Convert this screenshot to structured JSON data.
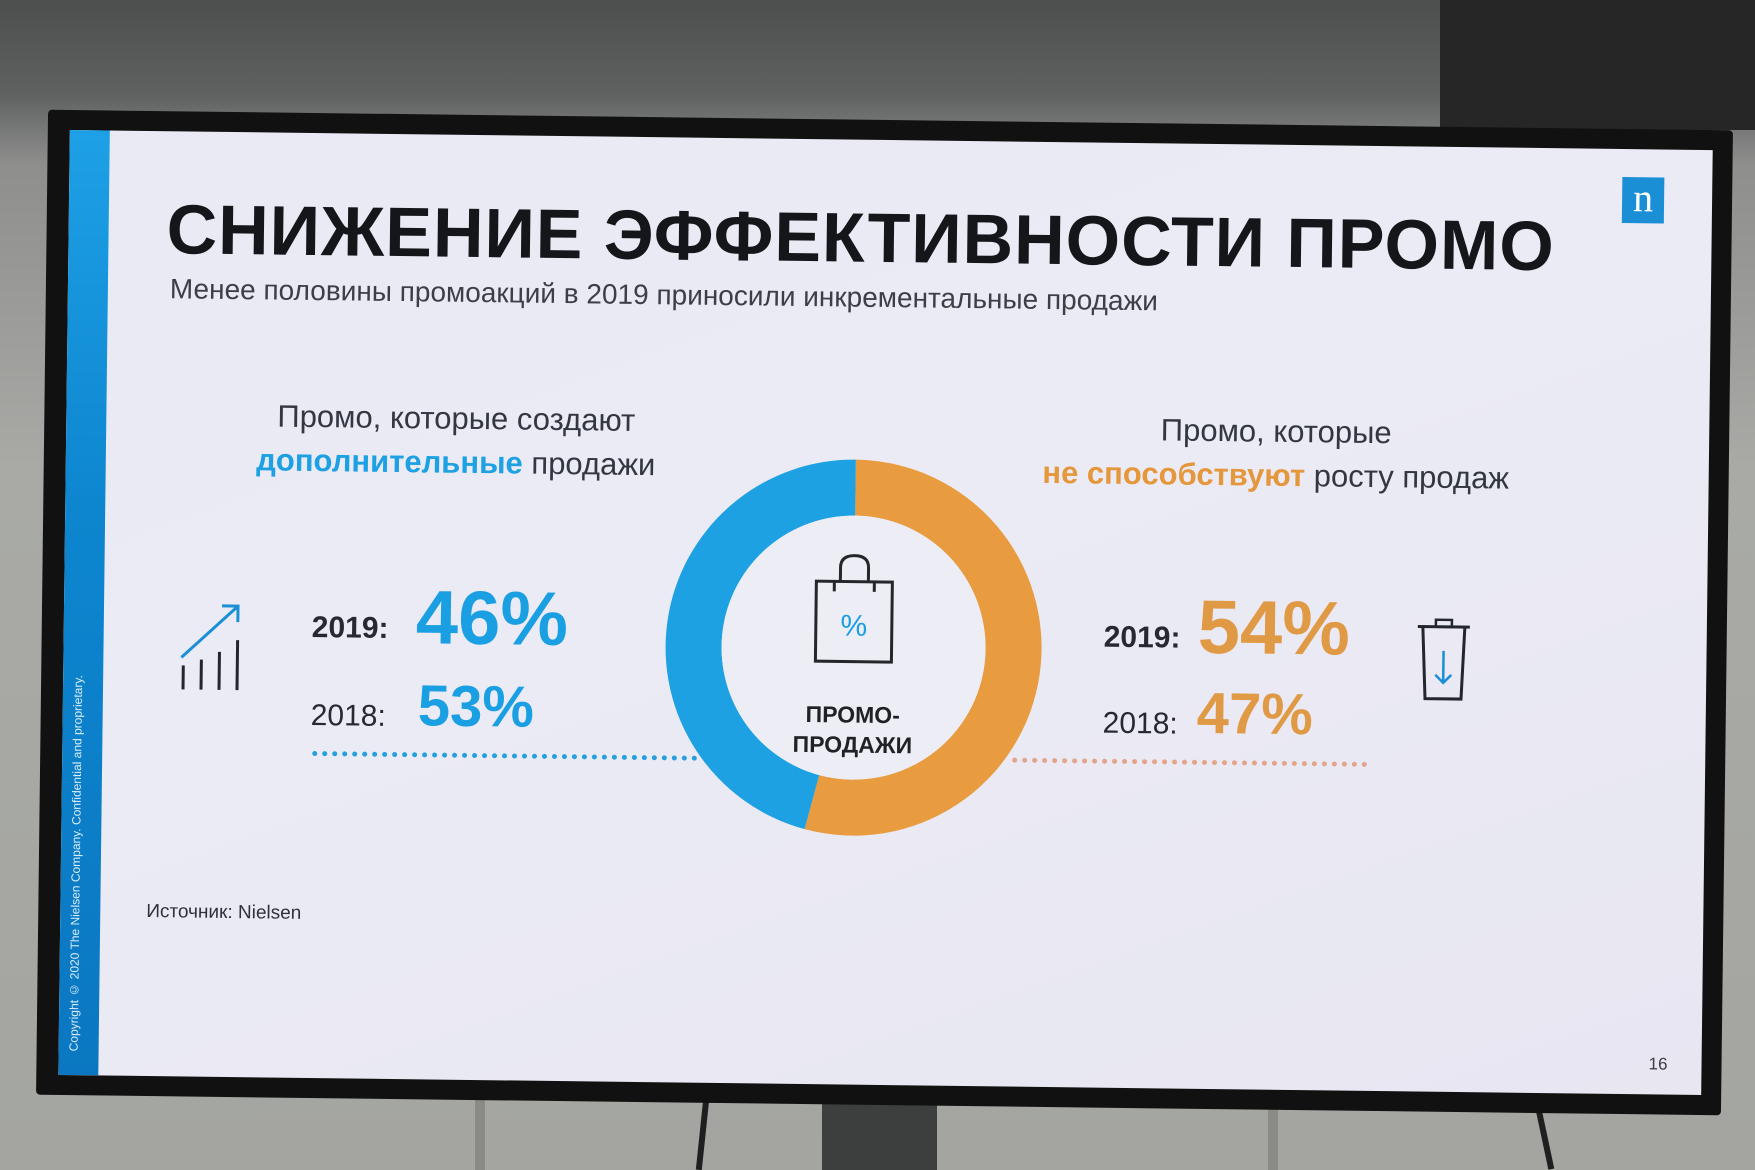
{
  "slide": {
    "logo": "n",
    "title": "СНИЖЕНИЕ ЭФФЕКТИВНОСТИ ПРОМО",
    "subtitle": "Менее половины промоакций в 2019 приносили инкрементальные продажи",
    "copyright": "Copyright © 2020 The Nielsen Company. Confidential and proprietary.",
    "source": "Источник: Nielsen",
    "page_number": "16"
  },
  "left": {
    "heading_line1": "Промо, которые создают",
    "heading_highlight": "дополнительные",
    "heading_rest": " продажи",
    "year_2019": "2019:",
    "value_2019": "46%",
    "year_2018": "2018:",
    "value_2018": "53%",
    "icon": "growth-chart-icon",
    "color": "#1ea1e3"
  },
  "right": {
    "heading_line1": "Промо, которые",
    "heading_highlight": "не способствуют",
    "heading_rest": " росту продаж",
    "year_2019": "2019:",
    "value_2019": "54%",
    "year_2018": "2018:",
    "value_2018": "47%",
    "icon": "trash-down-icon",
    "color": "#e5973c"
  },
  "center": {
    "label_line1": "ПРОМО-",
    "label_line2": "ПРОДАЖИ",
    "bag_symbol": "%",
    "icon": "shopping-bag-icon"
  },
  "chart_data": {
    "type": "pie",
    "categories": [
      "Промо, которые создают дополнительные продажи",
      "Промо, которые не способствуют росту продаж"
    ],
    "values": [
      46,
      54
    ],
    "colors": [
      "#1ea1e3",
      "#e89b3f"
    ]
  }
}
